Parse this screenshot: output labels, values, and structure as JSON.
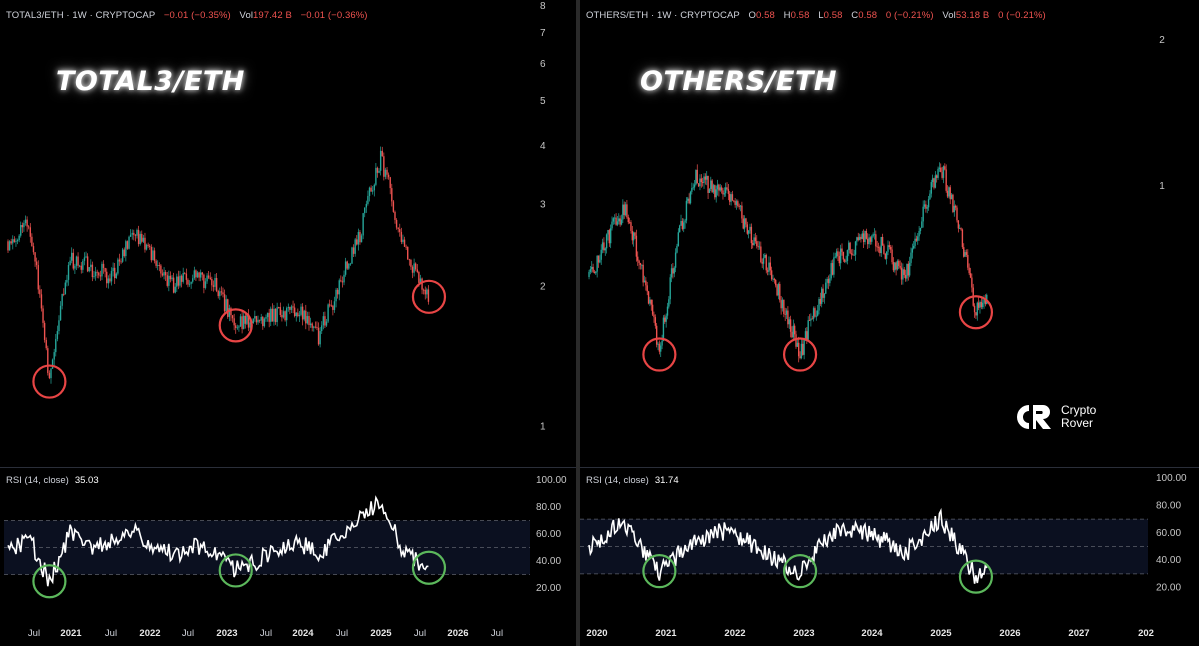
{
  "left": {
    "header": {
      "symbol": "TOTAL3/ETH",
      "interval": "1W",
      "exchange": "CRYPTOCAP",
      "change": "−0.01 (−0.35%)",
      "vol_label": "Vol",
      "vol_value": "197.42 B",
      "vol_change": "−0.01 (−0.36%)"
    },
    "title": "TOTAL3/ETH",
    "rsi": {
      "label": "RSI (14, close)",
      "value": "35.03"
    },
    "price_axis": [
      "8",
      "7",
      "6",
      "5",
      "4",
      "3",
      "2",
      "1"
    ],
    "rsi_axis": [
      "100.00",
      "80.00",
      "60.00",
      "40.00",
      "20.00"
    ],
    "time_axis": [
      "Jul",
      "2021",
      "Jul",
      "2022",
      "Jul",
      "2023",
      "Jul",
      "2024",
      "Jul",
      "2025",
      "Jul",
      "2026",
      "Jul"
    ]
  },
  "right": {
    "header": {
      "symbol": "OTHERS/ETH",
      "interval": "1W",
      "exchange": "CRYPTOCAP",
      "o_label": "O",
      "o": "0.58",
      "h_label": "H",
      "h": "0.58",
      "l_label": "L",
      "l": "0.58",
      "c_label": "C",
      "c": "0.58",
      "change": "0 (−0.21%)",
      "vol_label": "Vol",
      "vol_value": "53.18 B",
      "vol_change": "0 (−0.21%)"
    },
    "title": "OTHERS/ETH",
    "rsi": {
      "label": "RSI (14, close)",
      "value": "31.74"
    },
    "price_axis": [
      "2",
      "1"
    ],
    "rsi_axis": [
      "100.00",
      "80.00",
      "60.00",
      "40.00",
      "20.00"
    ],
    "time_axis": [
      "2020",
      "2021",
      "2022",
      "2023",
      "2024",
      "2025",
      "2026",
      "2027",
      "202"
    ]
  },
  "logo": {
    "line1": "Crypto",
    "line2": "Rover"
  },
  "colors": {
    "up": "#26a69a",
    "down": "#ef5350",
    "circle_price": "#e84545",
    "circle_rsi": "#5cb85c",
    "rsi_line": "#ffffff",
    "rsi_band": "#0b1020"
  },
  "chart_data": [
    {
      "type": "line",
      "title": "TOTAL3/ETH",
      "interval": "1W",
      "y_scale": "log",
      "ylim": [
        0.9,
        8
      ],
      "x": [
        "2020-07",
        "2020-10",
        "2021-01",
        "2021-04",
        "2021-07",
        "2021-10",
        "2022-01",
        "2022-04",
        "2022-07",
        "2022-10",
        "2023-01",
        "2023-04",
        "2023-07",
        "2023-10",
        "2024-01",
        "2024-04",
        "2024-07",
        "2024-10",
        "2025-01",
        "2025-04",
        "2025-07",
        "2025-08"
      ],
      "series": [
        {
          "name": "TOTAL3/ETH",
          "values": [
            2.5,
            2.7,
            1.25,
            2.3,
            2.2,
            2.1,
            2.6,
            2.3,
            2.0,
            2.1,
            2.0,
            1.65,
            1.7,
            1.75,
            1.8,
            1.55,
            2.0,
            2.6,
            3.8,
            2.5,
            2.0,
            1.9
          ]
        },
        {
          "name": "RSI (14, close)",
          "values": [
            45,
            58,
            25,
            60,
            50,
            55,
            62,
            52,
            45,
            50,
            48,
            33,
            40,
            48,
            55,
            45,
            58,
            70,
            85,
            50,
            35,
            35
          ]
        }
      ],
      "rsi_levels": [
        70,
        30
      ]
    },
    {
      "type": "line",
      "title": "OTHERS/ETH",
      "interval": "1W",
      "y_scale": "log",
      "ylim": [
        0.3,
        2.2
      ],
      "x": [
        "2020-01",
        "2020-07",
        "2021-01",
        "2021-07",
        "2022-01",
        "2022-07",
        "2023-01",
        "2023-07",
        "2024-01",
        "2024-07",
        "2025-01",
        "2025-07",
        "2025-09"
      ],
      "series": [
        {
          "name": "OTHERS/ETH",
          "values": [
            0.65,
            0.9,
            0.45,
            1.05,
            0.95,
            0.7,
            0.45,
            0.7,
            0.8,
            0.65,
            1.1,
            0.55,
            0.58
          ]
        },
        {
          "name": "RSI (14, close)",
          "values": [
            50,
            68,
            32,
            55,
            62,
            45,
            32,
            62,
            60,
            45,
            70,
            28,
            31.74
          ]
        }
      ],
      "rsi_levels": [
        70,
        30
      ]
    }
  ]
}
